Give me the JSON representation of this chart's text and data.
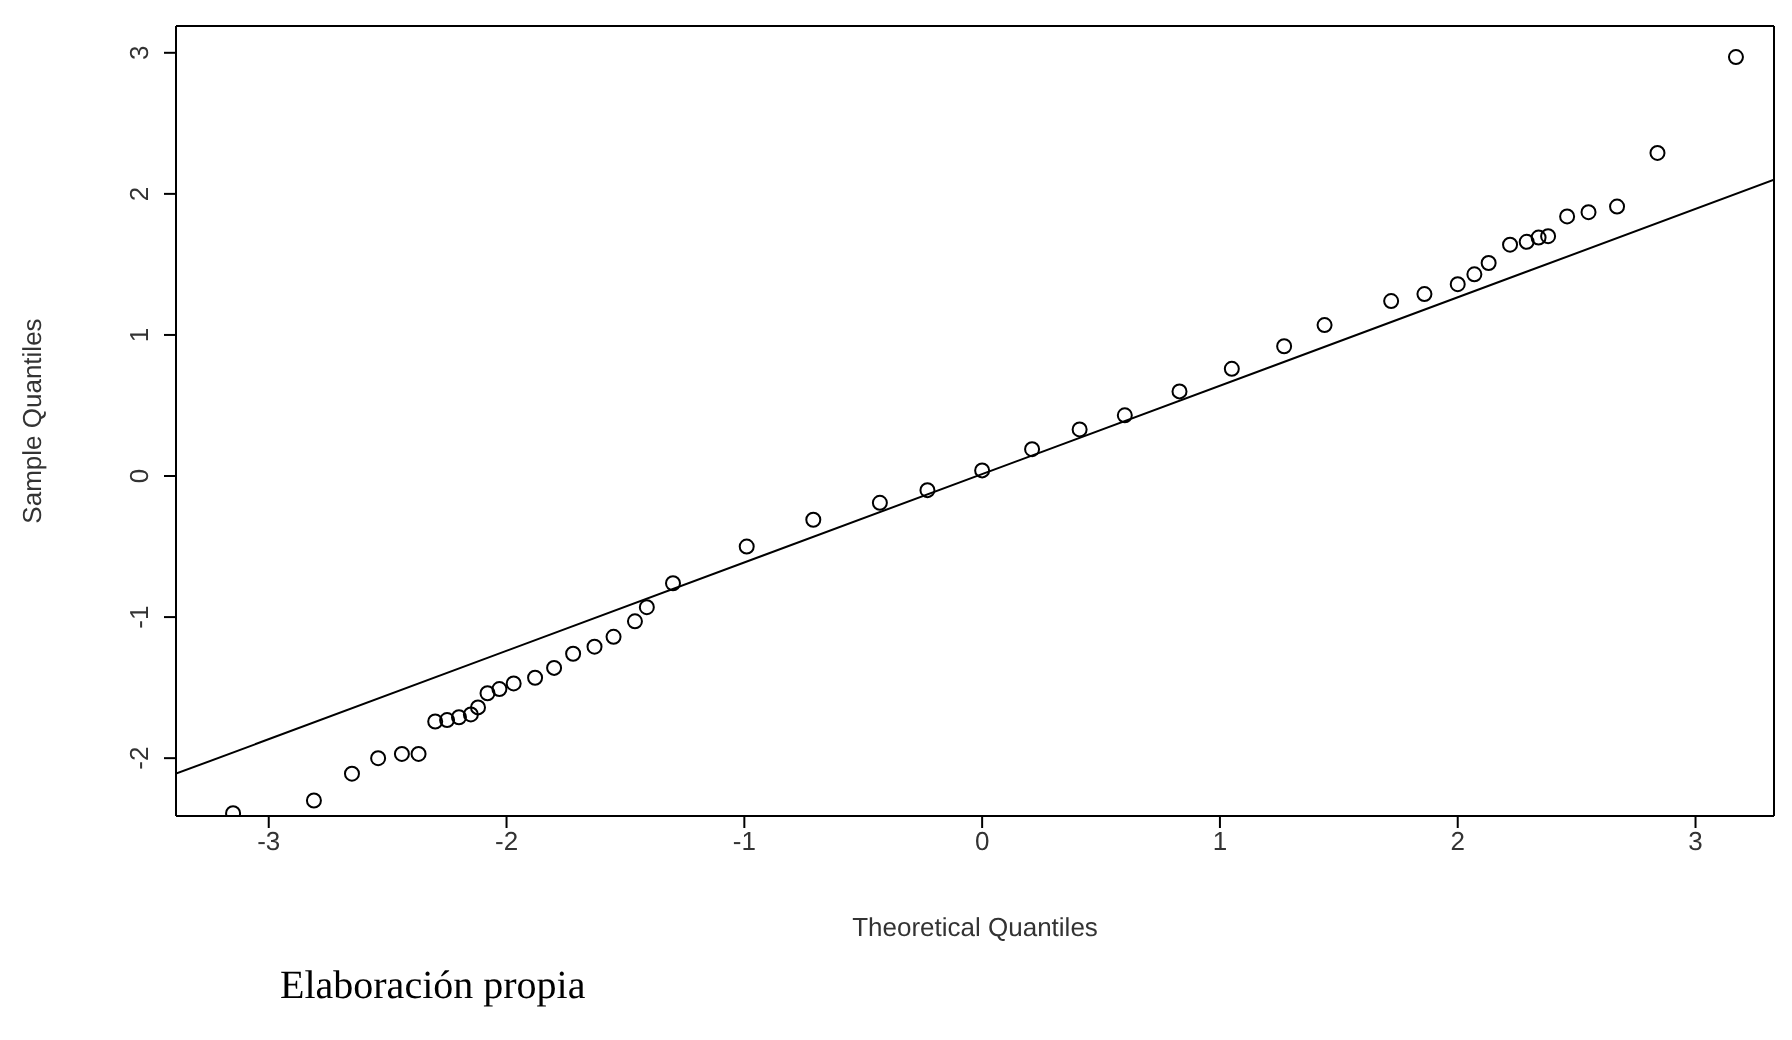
{
  "chart_data": {
    "type": "scatter",
    "xlabel": "Theoretical Quantiles",
    "ylabel": "Sample Quantiles",
    "annotations": [
      "Elaboración propia"
    ],
    "xlim": [
      -3.39,
      3.33
    ],
    "ylim": [
      -2.41,
      3.19
    ],
    "xticks": [
      -3,
      -2,
      -1,
      0,
      1,
      2,
      3
    ],
    "yticks": [
      -2,
      -1,
      0,
      1,
      2,
      3
    ],
    "series": [
      {
        "color": "#000000",
        "marker": "circle",
        "x": [
          -3.15,
          -2.81,
          -2.65,
          -2.54,
          -2.44,
          -2.37,
          -2.3,
          -2.25,
          -2.2,
          -2.15,
          -2.12,
          -2.08,
          -2.03,
          -1.97,
          -1.88,
          -1.8,
          -1.72,
          -1.63,
          -1.55,
          -1.46,
          -1.41,
          -1.3,
          -0.99,
          -0.71,
          -0.43,
          -0.23,
          0,
          0.21,
          0.41,
          0.6,
          0.83,
          1.05,
          1.27,
          1.44,
          1.72,
          1.86,
          2,
          2.07,
          2.13,
          2.22,
          2.29,
          2.34,
          2.38,
          2.46,
          2.55,
          2.67,
          2.84,
          3.17
        ],
        "values": [
          -2.39,
          -2.3,
          -2.11,
          -2,
          -1.97,
          -1.97,
          -1.74,
          -1.73,
          -1.71,
          -1.69,
          -1.64,
          -1.54,
          -1.51,
          -1.47,
          -1.43,
          -1.36,
          -1.26,
          -1.21,
          -1.14,
          -1.03,
          -0.93,
          -0.76,
          -0.5,
          -0.31,
          -0.19,
          -0.1,
          0.04,
          0.19,
          0.33,
          0.43,
          0.6,
          0.76,
          0.92,
          1.07,
          1.24,
          1.29,
          1.36,
          1.43,
          1.51,
          1.64,
          1.66,
          1.69,
          1.7,
          1.84,
          1.87,
          1.91,
          2.29,
          2.97
        ]
      },
      {
        "type": "line",
        "color": "#000000",
        "marker": "none",
        "line_style": "solid",
        "x": [
          -3.39,
          3.33
        ],
        "values": [
          -2.11,
          2.1
        ]
      }
    ]
  }
}
